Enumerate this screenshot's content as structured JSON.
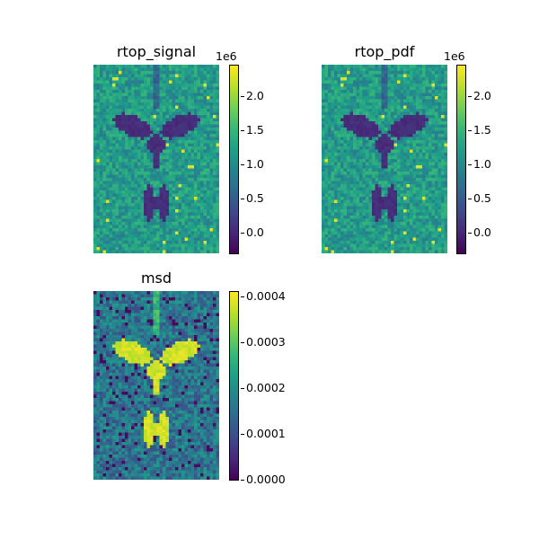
{
  "chart_data": [
    {
      "type": "heatmap",
      "title": "rtop_signal",
      "colormap": "viridis",
      "colorbar": {
        "offset_label": "1e6",
        "ticks": [
          "0.0",
          "0.5",
          "1.0",
          "1.5",
          "2.0"
        ],
        "tick_values": [
          0.0,
          0.5,
          1.0,
          1.5,
          2.0
        ],
        "range": [
          -0.3,
          2.45
        ]
      },
      "description": "Axial brain slice; ventricles appear dark (low values ~0), parenchyma ~1.0-1.5e6, scattered bright voxels up to ~2.4e6"
    },
    {
      "type": "heatmap",
      "title": "rtop_pdf",
      "colormap": "viridis",
      "colorbar": {
        "offset_label": "1e6",
        "ticks": [
          "0.0",
          "0.5",
          "1.0",
          "1.5",
          "2.0"
        ],
        "tick_values": [
          0.0,
          0.5,
          1.0,
          1.5,
          2.0
        ],
        "range": [
          -0.3,
          2.45
        ]
      },
      "description": "Nearly identical to rtop_signal"
    },
    {
      "type": "heatmap",
      "title": "msd",
      "colormap": "viridis",
      "colorbar": {
        "offset_label": "",
        "ticks": [
          "0.0000",
          "0.0001",
          "0.0002",
          "0.0003",
          "0.0004"
        ],
        "tick_values": [
          0.0,
          0.0001,
          0.0002,
          0.0003,
          0.0004
        ],
        "range": [
          0.0,
          0.00041
        ]
      },
      "description": "Inverse contrast: ventricles bright (~0.0004), parenchyma ~0.0001-0.0002"
    }
  ],
  "panels": {
    "p1": {
      "title": "rtop_signal",
      "offset": "1e6",
      "ticks": [
        "0.0",
        "0.5",
        "1.0",
        "1.5",
        "2.0"
      ]
    },
    "p2": {
      "title": "rtop_pdf",
      "offset": "1e6",
      "ticks": [
        "0.0",
        "0.5",
        "1.0",
        "1.5",
        "2.0"
      ]
    },
    "p3": {
      "title": "msd",
      "ticks": [
        "0.0000",
        "0.0001",
        "0.0002",
        "0.0003",
        "0.0004"
      ]
    }
  }
}
